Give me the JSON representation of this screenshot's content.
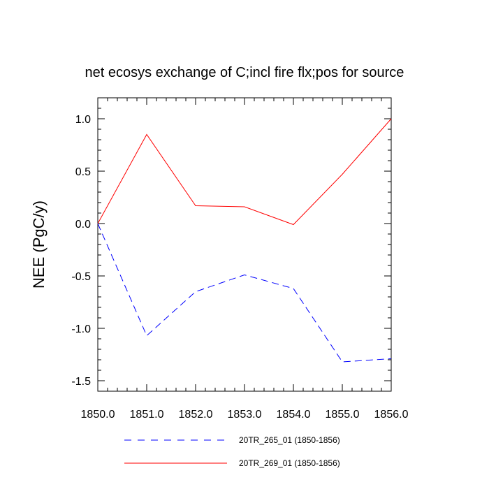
{
  "chart_data": {
    "type": "line",
    "title": "net ecosys exchange of C;incl fire flx;pos for source",
    "xlabel": "",
    "ylabel": "NEE  (PgC/y)",
    "x": [
      1850,
      1851,
      1852,
      1853,
      1854,
      1855,
      1856
    ],
    "xlim": [
      1850,
      1856
    ],
    "ylim": [
      -1.6,
      1.2
    ],
    "xticks": [
      1850,
      1851,
      1852,
      1853,
      1854,
      1855,
      1856
    ],
    "xtick_labels": [
      "1850.0",
      "1851.0",
      "1852.0",
      "1853.0",
      "1854.0",
      "1855.0",
      "1856.0"
    ],
    "yticks": [
      -1.5,
      -1.0,
      -0.5,
      0.0,
      0.5,
      1.0
    ],
    "ytick_labels": [
      "-1.5",
      "-1.0",
      "-0.5",
      "0.0",
      "0.5",
      "1.0"
    ],
    "grid": false,
    "legend_position": "bottom",
    "series": [
      {
        "name": "20TR_265_01 (1850-1856)",
        "values": [
          0.0,
          -1.07,
          -0.65,
          -0.49,
          -0.62,
          -1.32,
          -1.29
        ],
        "color": "#0000ff",
        "style": "dashed"
      },
      {
        "name": "20TR_269_01 (1850-1856)",
        "values": [
          0.0,
          0.85,
          0.17,
          0.16,
          -0.01,
          0.47,
          1.0
        ],
        "color": "#ff0000",
        "style": "solid"
      }
    ]
  }
}
